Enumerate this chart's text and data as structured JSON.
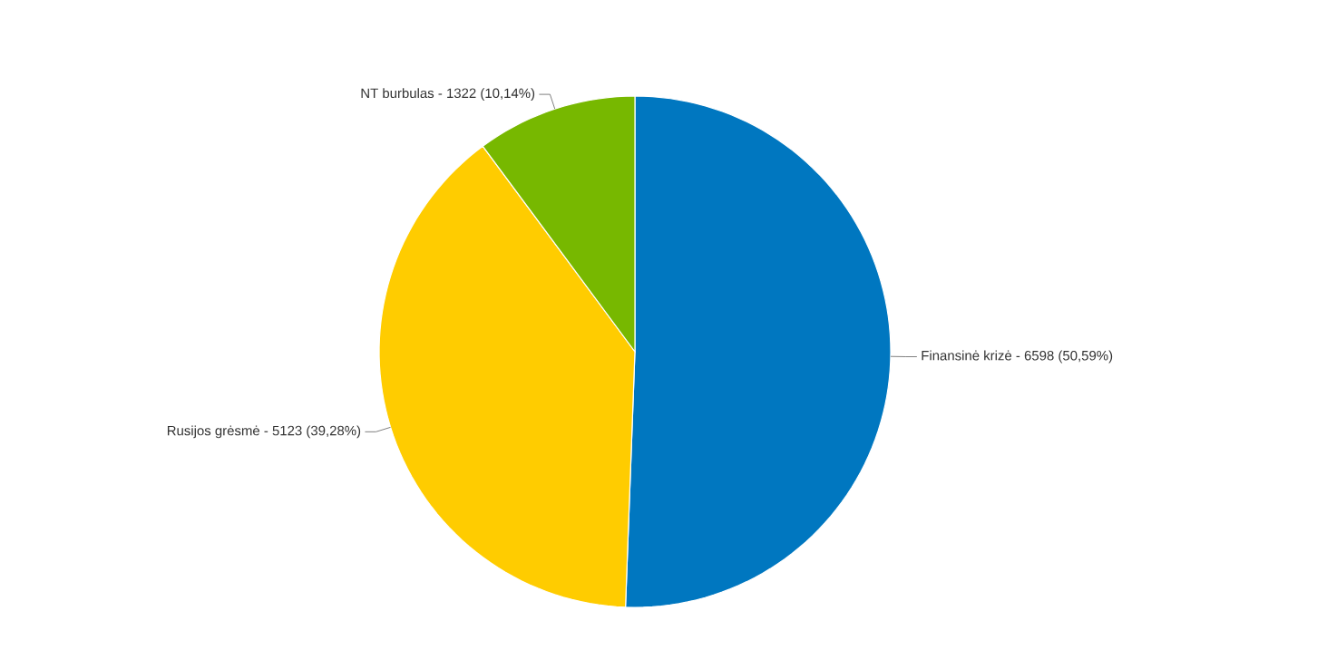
{
  "chart_data": {
    "type": "pie",
    "categories": [
      "Finansinė krizė -",
      "Rusijos grėsmė -",
      "NT burbulas -"
    ],
    "values": [
      6598,
      5123,
      1322
    ],
    "data_labels": true,
    "annotations": [
      "(50,59%)",
      "(39,28%)",
      "(10,14%)"
    ],
    "colors": [
      "#0077c0",
      "#ffcc00",
      "#77b800"
    ]
  }
}
